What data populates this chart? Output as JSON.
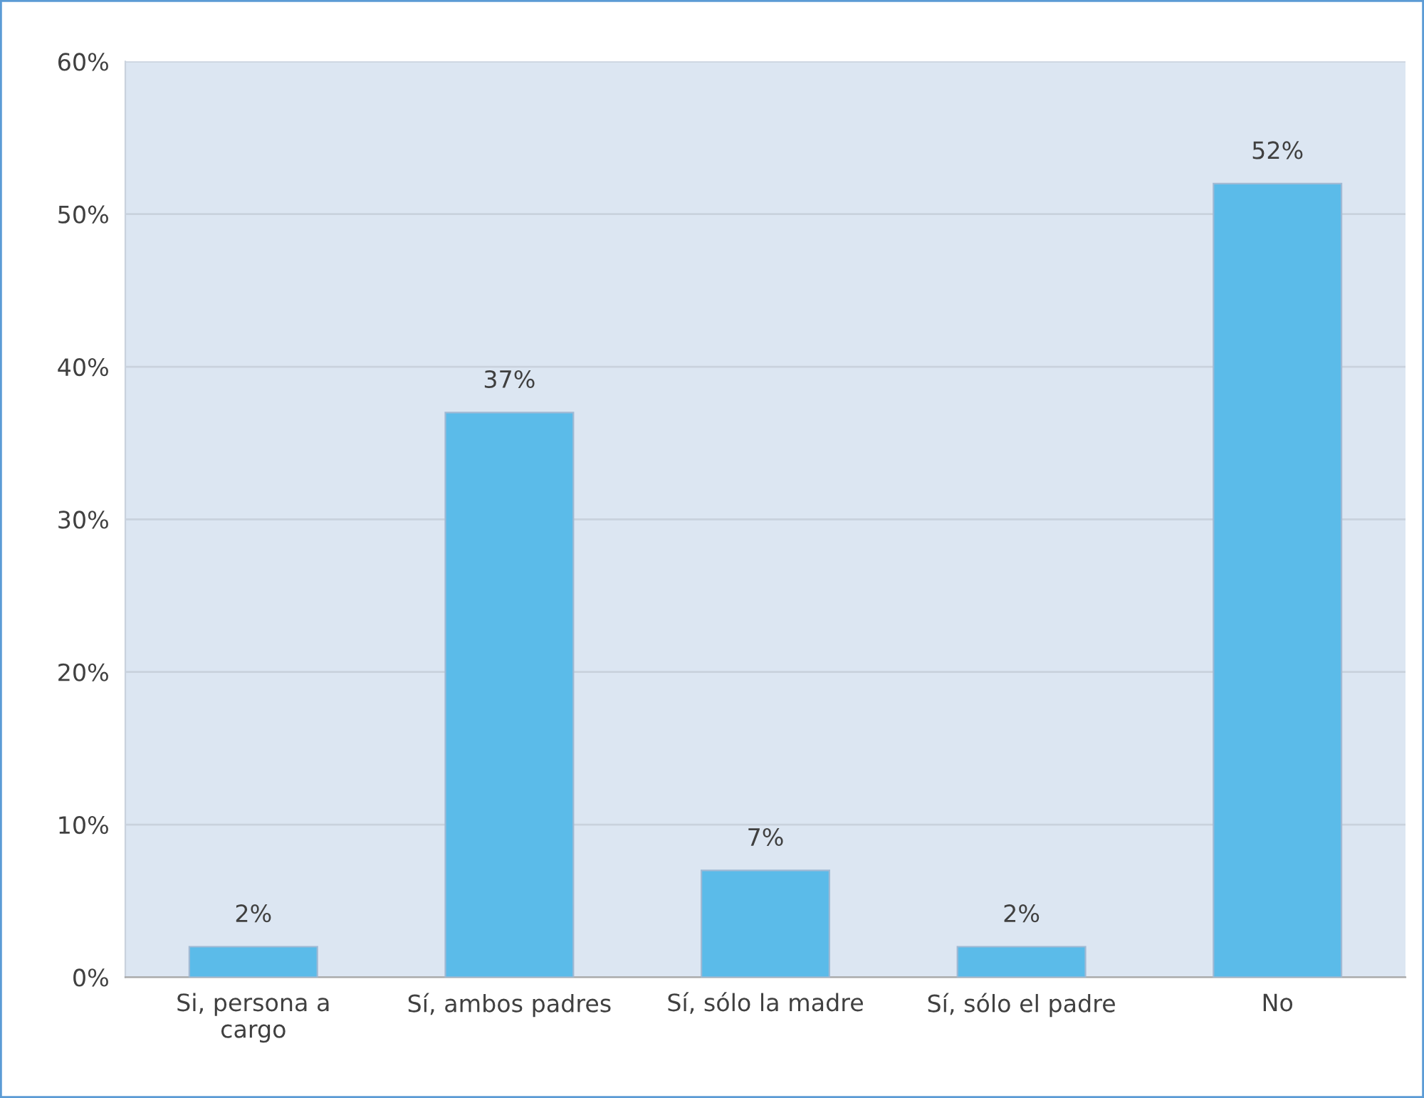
{
  "chart_data": {
    "type": "bar",
    "categories": [
      "Si, persona a\ncargo",
      "Sí, ambos padres",
      "Sí, sólo la madre",
      "Sí, sólo el padre",
      "No"
    ],
    "values": [
      2,
      37,
      7,
      2,
      52
    ],
    "color": "#5bbbe9",
    "ylim": [
      0,
      60
    ],
    "yticks": [
      {
        "value": 0,
        "label": "0%"
      },
      {
        "value": 10,
        "label": "10%"
      },
      {
        "value": 20,
        "label": "20%"
      },
      {
        "value": 30,
        "label": "30%"
      },
      {
        "value": 40,
        "label": "40%"
      },
      {
        "value": 50,
        "label": "50%"
      },
      {
        "value": 60,
        "label": "60%"
      }
    ],
    "grid": "y",
    "value_labels": [
      "2%",
      "37%",
      "7%",
      "2%",
      "52%"
    ],
    "legend": false
  }
}
